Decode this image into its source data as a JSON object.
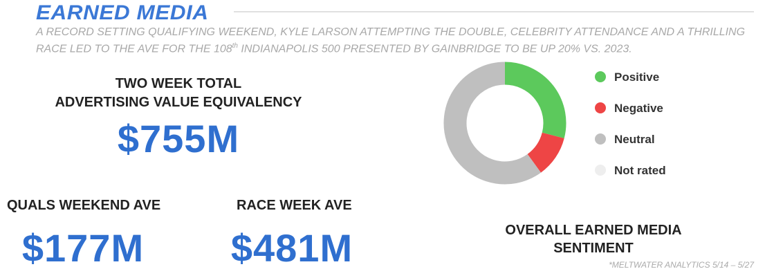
{
  "header": {
    "title": "EARNED MEDIA",
    "subtitle": {
      "before": "A RECORD SETTING QUALIFYING WEEKEND, KYLE LARSON ATTEMPTING THE DOUBLE, CELEBRITY ATTENDANCE AND A THRILLING RACE LED TO THE AVE FOR THE 108",
      "sup": "th",
      "after": " INDIANAPOLIS 500 PRESENTED BY GAINBRIDGE TO BE UP 20% VS. 2023."
    }
  },
  "total": {
    "label_lines": [
      "TWO WEEK TOTAL",
      "ADVERTISING VALUE EQUIVALENCY"
    ],
    "value": "$755M"
  },
  "quals": {
    "label": "QUALS WEEKEND AVE",
    "value": "$177M"
  },
  "race": {
    "label": "RACE WEEK AVE",
    "value": "$481M"
  },
  "chart_data": {
    "type": "pie",
    "title_lines": [
      "OVERALL EARNED MEDIA",
      "SENTIMENT"
    ],
    "categories": [
      "Positive",
      "Negative",
      "Neutral",
      "Not rated"
    ],
    "values": [
      29,
      11,
      60,
      0
    ],
    "colors": [
      "#5cc95c",
      "#ee4545",
      "#bfbfbf",
      "#eeeeee"
    ],
    "donut": true
  },
  "footnote": "*MELTWATER ANALYTICS 5/14 – 5/27"
}
